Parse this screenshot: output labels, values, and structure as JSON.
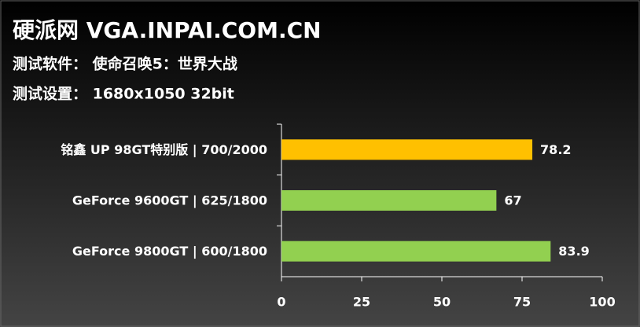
{
  "chart_data": {
    "type": "barh",
    "title": "硬派网 VGA.INPAI.COM.CN",
    "subtitle": [
      "测试软件： 使命召唤5：世界大战",
      "测试设置： 1680x1050 32bit"
    ],
    "categories": [
      "铭鑫 UP 98GT特别版 | 700/2000",
      "GeForce 9600GT | 625/1800",
      "GeForce 9800GT | 600/1800"
    ],
    "values": [
      78.2,
      67,
      83.9
    ],
    "colors": [
      "#ffc000",
      "#92d050",
      "#92d050"
    ],
    "xlim": [
      0,
      100
    ],
    "xticks": [
      0,
      25,
      50,
      75,
      100
    ],
    "grid": false
  }
}
